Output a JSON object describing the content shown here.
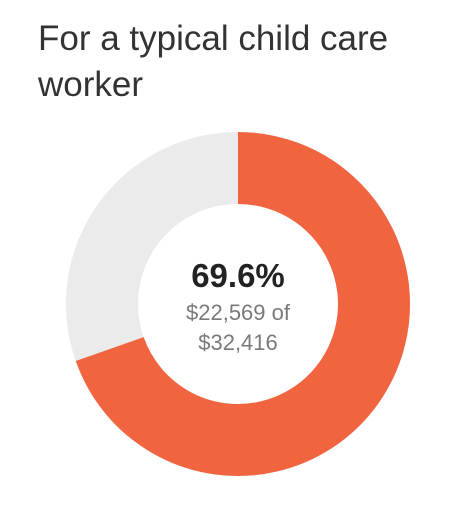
{
  "title": "For a typical child care worker",
  "colors": {
    "accent": "#f0643f",
    "remainder": "#ebebeb",
    "text": "#333333",
    "subtext": "#7a7a7a"
  },
  "chart_data": {
    "type": "pie",
    "style": "donut",
    "title": "For a typical child care worker",
    "center_label": "69.6%",
    "center_sublabel_line1": "$22,569 of",
    "center_sublabel_line2": "$32,416",
    "values": [
      22569,
      9847
    ],
    "total": 32416,
    "percent": 69.6
  }
}
